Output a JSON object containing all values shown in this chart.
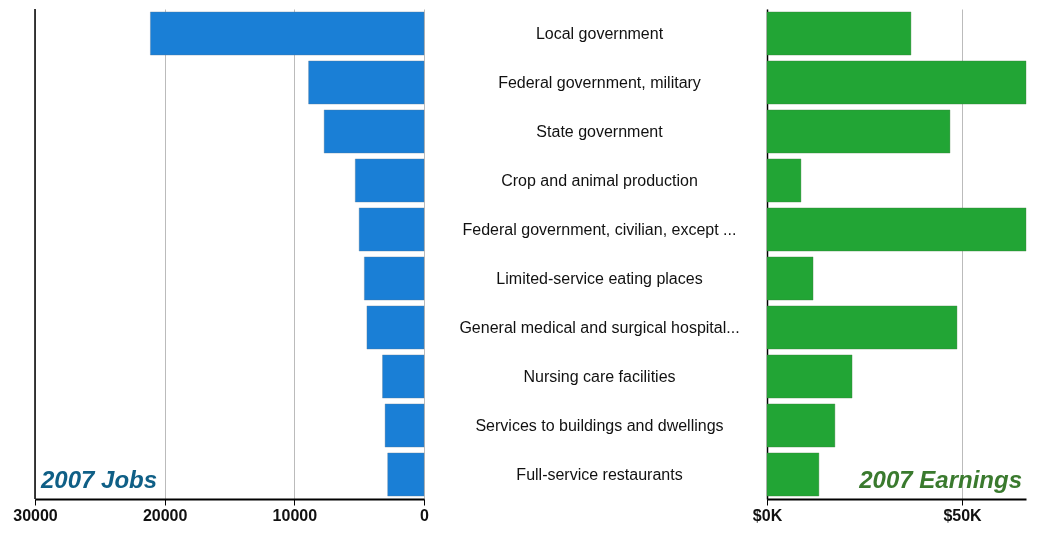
{
  "chart_data": [
    {
      "type": "bar",
      "orientation": "horizontal",
      "title": "2007 Jobs",
      "categories": [
        "Local government",
        "Federal government, military",
        "State government",
        "Crop and animal production",
        "Federal government, civilian, except ...",
        "Limited-service eating places",
        "General medical and surgical hospital...",
        "Nursing care facilities",
        "Services to buildings and dwellings",
        "Full-service restaurants"
      ],
      "values": [
        21100,
        8900,
        7700,
        5300,
        5000,
        4600,
        4400,
        3200,
        3000,
        2800
      ],
      "color": "#1a7fd6",
      "xlim": [
        30000,
        0
      ],
      "xticks": [
        30000,
        20000,
        10000,
        0
      ],
      "grid": "x"
    },
    {
      "type": "bar",
      "orientation": "horizontal",
      "title": "2007 Earnings",
      "values": [
        36.9,
        66.4,
        46.9,
        8.7,
        66.4,
        11.8,
        48.7,
        21.8,
        17.4,
        13.3
      ],
      "color": "#22a535",
      "xlim": [
        0,
        66.4
      ],
      "xticks": [
        {
          "value": 0,
          "label": "$0K"
        },
        {
          "value": 50,
          "label": "$50K"
        }
      ],
      "grid": "x",
      "tick_labels": "x"
    }
  ]
}
